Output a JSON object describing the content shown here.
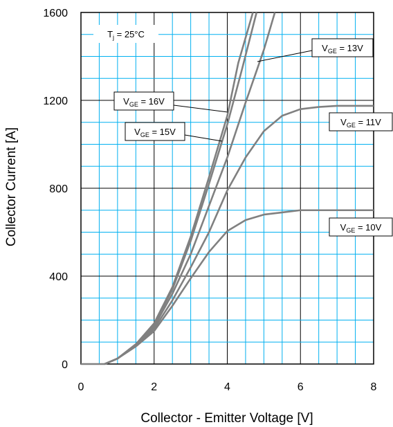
{
  "chart_data": {
    "type": "line",
    "xlabel": "Collector - Emitter Voltage [V]",
    "ylabel": "Collector Current [A]",
    "xlim": [
      0,
      8
    ],
    "ylim": [
      0,
      1600
    ],
    "x_ticks": [
      "0",
      "2",
      "4",
      "6",
      "8"
    ],
    "y_ticks": [
      "0",
      "400",
      "800",
      "1200",
      "1600"
    ],
    "grid": true,
    "line_color": "#808080",
    "grid_color": "#00b0f0",
    "annotation": "T_j = 25°C",
    "series": [
      {
        "name": "V_GE = 10V",
        "x": [
          0.65,
          1.0,
          1.5,
          2.0,
          2.5,
          3.0,
          3.5,
          4.0,
          4.5,
          5.0,
          5.5,
          6.0,
          6.5,
          7.0,
          7.5,
          8.0
        ],
        "y": [
          0,
          25,
          80,
          150,
          265,
          390,
          510,
          605,
          655,
          680,
          690,
          700,
          700,
          700,
          700,
          700
        ]
      },
      {
        "name": "V_GE = 11V",
        "x": [
          0.65,
          1.0,
          1.5,
          2.0,
          2.5,
          3.0,
          3.5,
          4.0,
          4.5,
          5.0,
          5.5,
          6.0,
          6.5,
          7.0,
          7.5,
          8.0
        ],
        "y": [
          0,
          25,
          85,
          160,
          290,
          440,
          600,
          790,
          940,
          1060,
          1130,
          1160,
          1170,
          1175,
          1175,
          1175
        ]
      },
      {
        "name": "V_GE = 13V",
        "x": [
          0.65,
          1.0,
          1.5,
          2.0,
          2.5,
          3.0,
          3.5,
          4.0,
          4.5,
          5.0,
          5.3
        ],
        "y": [
          0,
          25,
          85,
          170,
          320,
          500,
          720,
          940,
          1190,
          1430,
          1600
        ]
      },
      {
        "name": "V_GE = 15V",
        "x": [
          0.65,
          1.0,
          1.5,
          2.0,
          2.5,
          3.0,
          3.5,
          4.0,
          4.4,
          4.8
        ],
        "y": [
          0,
          25,
          90,
          180,
          340,
          560,
          820,
          1090,
          1340,
          1600
        ]
      },
      {
        "name": "V_GE = 16V",
        "x": [
          0.65,
          1.0,
          1.5,
          2.0,
          2.5,
          3.0,
          3.5,
          4.0,
          4.3,
          4.7
        ],
        "y": [
          0,
          25,
          90,
          185,
          350,
          580,
          850,
          1130,
          1370,
          1600
        ]
      }
    ],
    "labels": [
      {
        "main": "V",
        "sub": "GE",
        "rest": " = 16V"
      },
      {
        "main": "V",
        "sub": "GE",
        "rest": " = 15V"
      },
      {
        "main": "V",
        "sub": "GE",
        "rest": " = 13V"
      },
      {
        "main": "V",
        "sub": "GE",
        "rest": " = 11V"
      },
      {
        "main": "V",
        "sub": "GE",
        "rest": " = 10V"
      }
    ],
    "tj_label": {
      "main": "T",
      "sub": "j",
      "rest": " = 25°C"
    }
  }
}
